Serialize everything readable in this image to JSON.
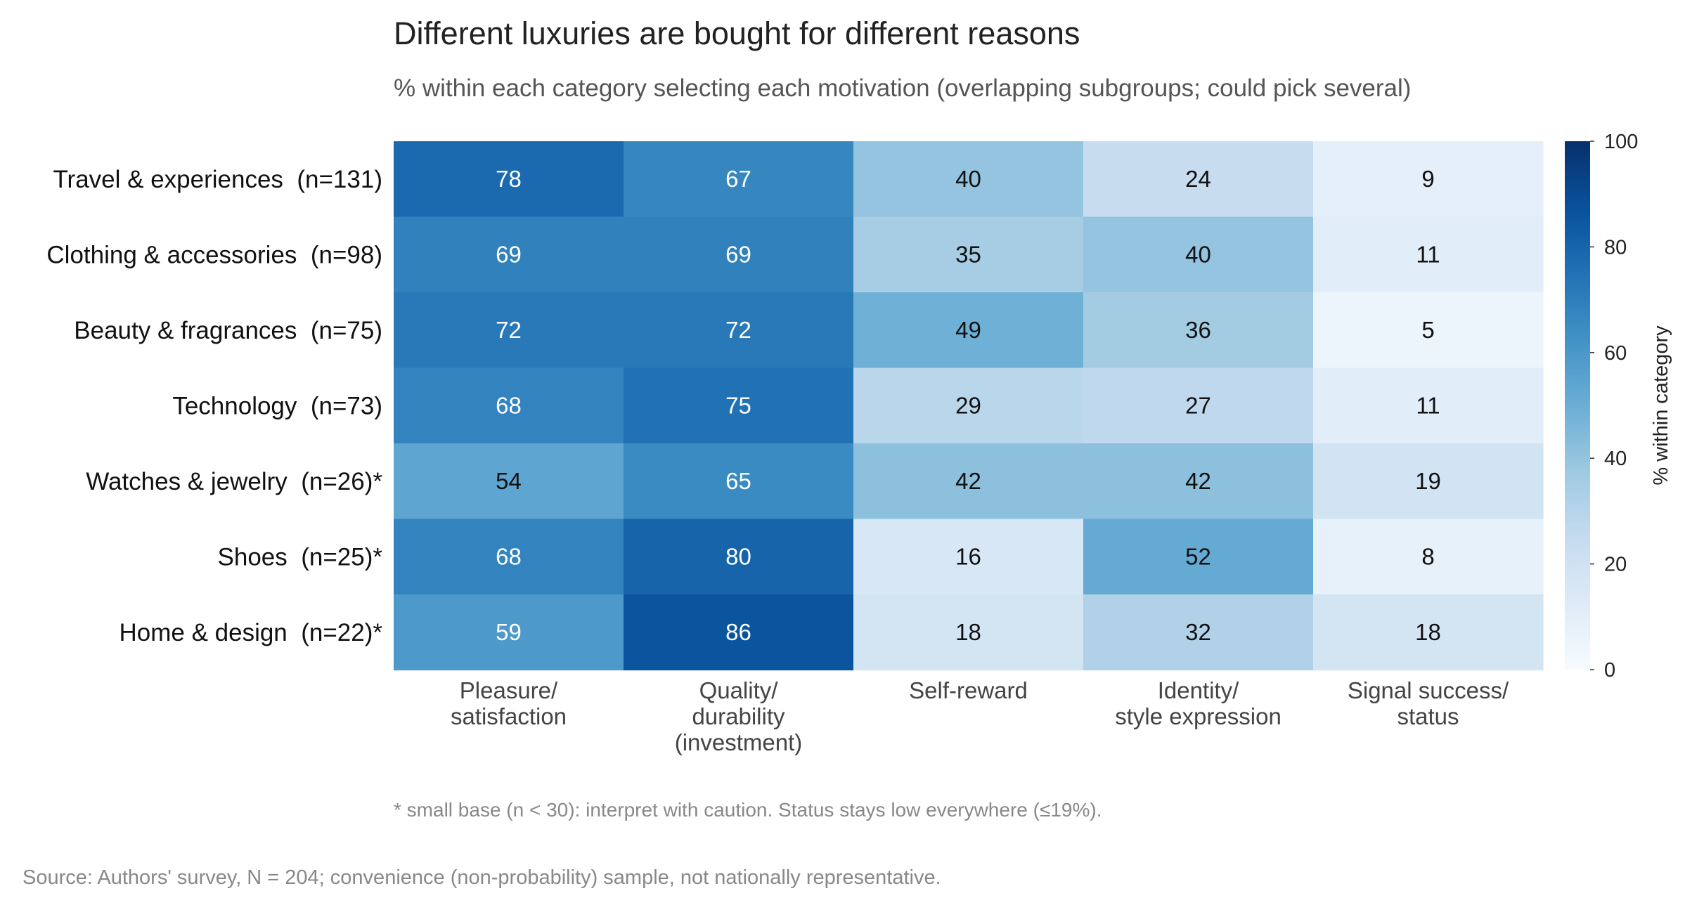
{
  "chart_data": {
    "type": "heatmap",
    "title": "Different luxuries are bought for different reasons",
    "subtitle": "% within each category selecting each motivation (overlapping subgroups; could pick several)",
    "rows": [
      "Travel & experiences  (n=131)",
      "Clothing & accessories  (n=98)",
      "Beauty & fragrances  (n=75)",
      "Technology  (n=73)",
      "Watches & jewelry  (n=26)*",
      "Shoes  (n=25)*",
      "Home & design  (n=22)*"
    ],
    "columns": [
      [
        "Pleasure/",
        "satisfaction"
      ],
      [
        "Quality/",
        "durability",
        "(investment)"
      ],
      [
        "Self-reward"
      ],
      [
        "Identity/",
        "style expression"
      ],
      [
        "Signal success/",
        "status"
      ]
    ],
    "values": [
      [
        78,
        67,
        40,
        24,
        9
      ],
      [
        69,
        69,
        35,
        40,
        11
      ],
      [
        72,
        72,
        49,
        36,
        5
      ],
      [
        68,
        75,
        29,
        27,
        11
      ],
      [
        54,
        65,
        42,
        42,
        19
      ],
      [
        68,
        80,
        16,
        52,
        8
      ],
      [
        59,
        86,
        18,
        32,
        18
      ]
    ],
    "colorbar": {
      "label": "% within category",
      "range": [
        0,
        100
      ],
      "ticks": [
        "0",
        "20",
        "40",
        "60",
        "80",
        "100"
      ],
      "colormap": "Blues"
    },
    "footnote": "* small base (n < 30): interpret with caution. Status stays low everywhere (≤19%).",
    "source": "Source: Authors' survey, N = 204; convenience (non-probability) sample, not nationally representative."
  }
}
